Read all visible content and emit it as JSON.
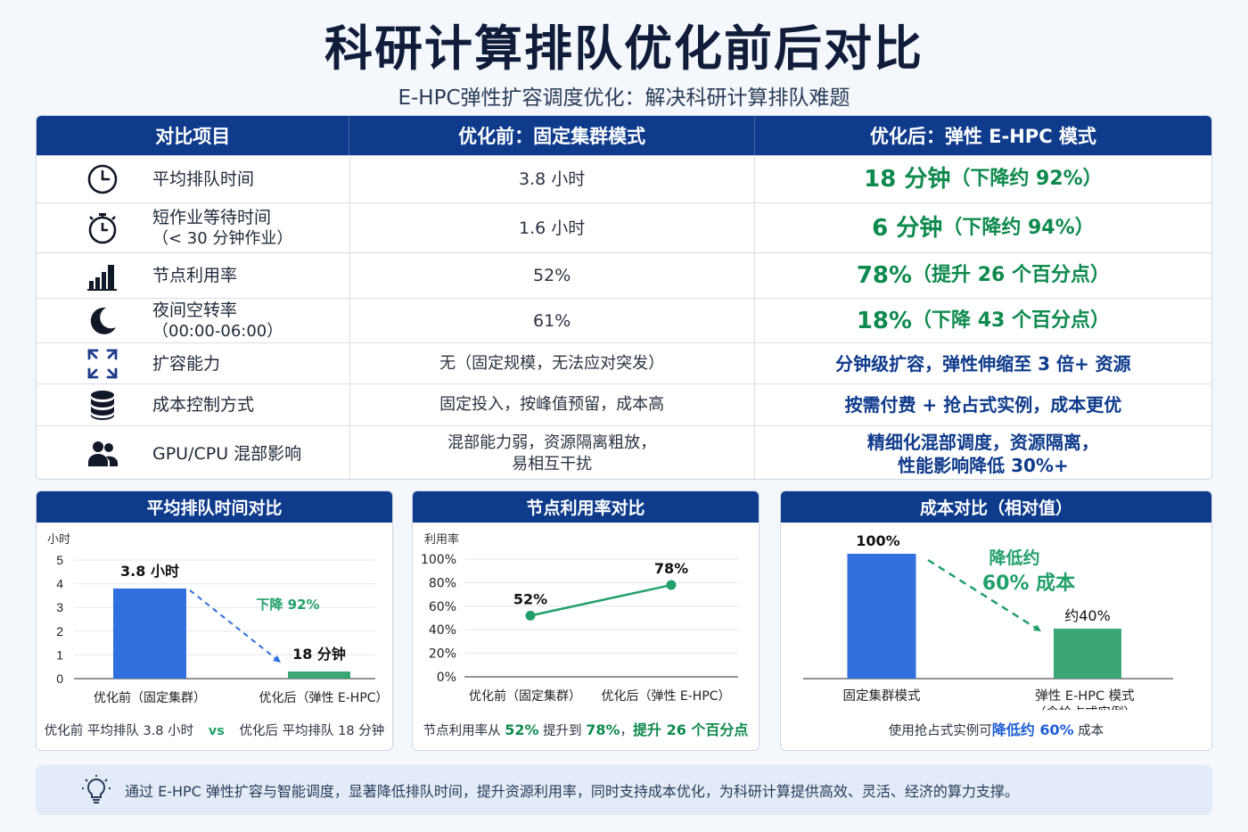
{
  "title": "科研计算排队优化前后对比",
  "subtitle": "E-HPC弹性扩容调度优化：解决科研计算排队难题",
  "table": {
    "headers": [
      "对比项目",
      "优化前：固定集群模式",
      "优化后：弹性 E-HPC 模式"
    ],
    "rows": [
      {
        "icon": "clock-icon",
        "label": "平均排队时间",
        "label_sub": "",
        "before": "3.8 小时",
        "after_main": "18 分钟",
        "after_note": "（下降约 92%）",
        "style": "green"
      },
      {
        "icon": "stopwatch-icon",
        "label": "短作业等待时间",
        "label_sub": "（< 30 分钟作业）",
        "before": "1.6 小时",
        "after_main": "6 分钟",
        "after_note": "（下降约 94%）",
        "style": "green"
      },
      {
        "icon": "bar-chart-icon",
        "label": "节点利用率",
        "label_sub": "",
        "before": "52%",
        "after_main": "78%",
        "after_note": "（提升 26 个百分点）",
        "style": "green"
      },
      {
        "icon": "moon-icon",
        "label": "夜间空转率",
        "label_sub": "（00:00-06:00）",
        "before": "61%",
        "after_main": "18%",
        "after_note": "（下降 43 个百分点）",
        "style": "green"
      },
      {
        "icon": "expand-icon",
        "label": "扩容能力",
        "label_sub": "",
        "before": "无（固定规模，无法应对突发）",
        "after_main": "分钟级扩容，弹性伸缩至 3 倍+ 资源",
        "after_note": "",
        "style": "blue"
      },
      {
        "icon": "database-icon",
        "label": "成本控制方式",
        "label_sub": "",
        "before": "固定投入，按峰值预留，成本高",
        "after_main": "按需付费 + 抢占式实例，成本更优",
        "after_note": "",
        "style": "blue"
      },
      {
        "icon": "users-icon",
        "label": "GPU/CPU 混部影响",
        "label_sub": "",
        "before": "混部能力弱，资源隔离粗放，\n易相互干扰",
        "after_main": "精细化混部调度，资源隔离，\n性能影响降低 30%+",
        "after_note": "",
        "style": "blue"
      }
    ]
  },
  "chart_data": [
    {
      "type": "bar",
      "title": "平均排队时间对比",
      "ylabel": "小时",
      "ylim": [
        0,
        5
      ],
      "yticks": [
        0,
        1,
        2,
        3,
        4,
        5
      ],
      "categories": [
        "优化前（固定集群）",
        "优化后（弹性 E-HPC）"
      ],
      "values": [
        3.8,
        0.3
      ],
      "data_labels": [
        "3.8 小时",
        "18 分钟"
      ],
      "colors": [
        "#2f6fde",
        "#3aa676"
      ],
      "annotation": "下降  92%",
      "footer": {
        "a": "优化前 平均排队 3.8 小时",
        "vs": "vs",
        "b": "优化后 平均排队 18 分钟"
      }
    },
    {
      "type": "line",
      "title": "节点利用率对比",
      "ylabel": "利用率",
      "ylim": [
        0,
        100
      ],
      "yticks": [
        "0%",
        "20%",
        "40%",
        "60%",
        "80%",
        "100%"
      ],
      "categories": [
        "优化前（固定集群）",
        "优化后（弹性 E-HPC）"
      ],
      "values": [
        52,
        78
      ],
      "data_labels": [
        "52%",
        "78%"
      ],
      "color": "#22a06b",
      "footer": {
        "a": "节点利用率从 ",
        "v1": "52%",
        "b": " 提升到 ",
        "v2": "78%",
        "c": "，",
        "d": "提升 26 个百分点"
      }
    },
    {
      "type": "bar",
      "title": "成本对比（相对值）",
      "ylim": [
        0,
        100
      ],
      "categories": [
        "固定集群模式",
        "弹性 E-HPC 模式\n（含抢占式实例）"
      ],
      "values": [
        100,
        40
      ],
      "data_labels": [
        "100%",
        "约40%"
      ],
      "colors": [
        "#2f6fde",
        "#3aa676"
      ],
      "annotation": [
        "降低约",
        "60% 成本"
      ],
      "footer": {
        "a": "使用抢占式实例可",
        "b": "降低约 60%",
        "c": " 成本"
      }
    }
  ],
  "banner": {
    "icon": "lightbulb-icon",
    "text": "通过 E-HPC 弹性扩容与智能调度，显著降低排队时间，提升资源利用率，同时支持成本优化，为科研计算提供高效、灵活、经济的算力支撑。"
  }
}
